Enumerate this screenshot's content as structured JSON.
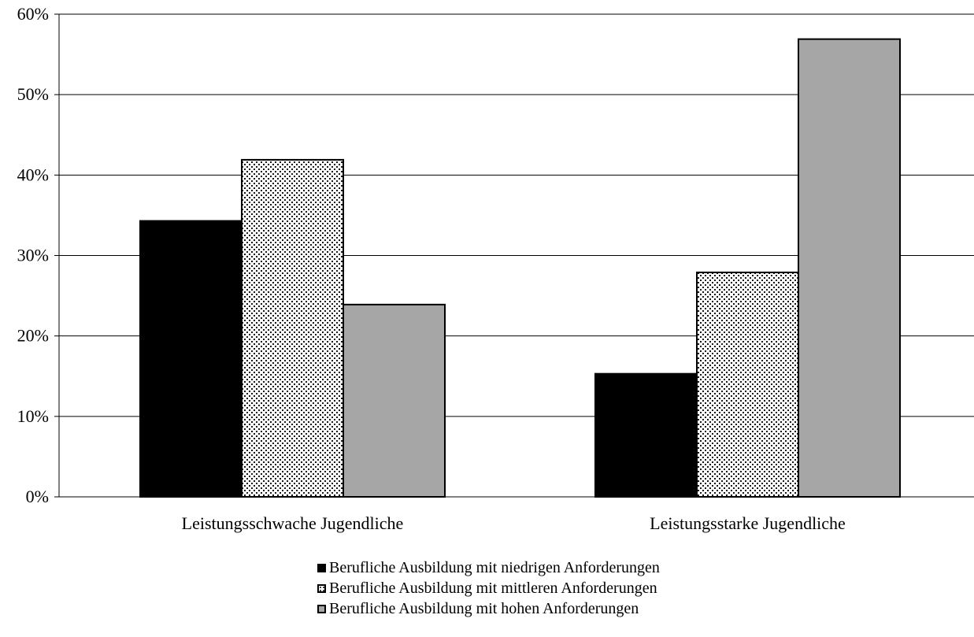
{
  "chart_data": {
    "type": "bar",
    "categories": [
      "Leistungsschwache Jugendliche",
      "Leistungsstarke Jugendliche"
    ],
    "series": [
      {
        "name": "Berufliche Ausbildung mit niedrigen Anforderungen",
        "values": [
          34.3,
          15.3
        ],
        "color": "#000000",
        "pattern": "solid"
      },
      {
        "name": "Berufliche Ausbildung mit mittleren Anforderungen",
        "values": [
          41.9,
          27.9
        ],
        "color": "#ffffff",
        "pattern": "dotted"
      },
      {
        "name": "Berufliche Ausbildung mit hohen Anforderungen",
        "values": [
          23.9,
          56.9
        ],
        "color": "#a6a6a6",
        "pattern": "solid"
      }
    ],
    "ylim": [
      0,
      60
    ],
    "yticks": [
      0,
      10,
      20,
      30,
      40,
      50,
      60
    ],
    "ytick_labels": [
      "0%",
      "10%",
      "20%",
      "30%",
      "40%",
      "50%",
      "60%"
    ],
    "title": "",
    "xlabel": "",
    "ylabel": "",
    "grid": "horizontal",
    "legend_position": "bottom"
  }
}
